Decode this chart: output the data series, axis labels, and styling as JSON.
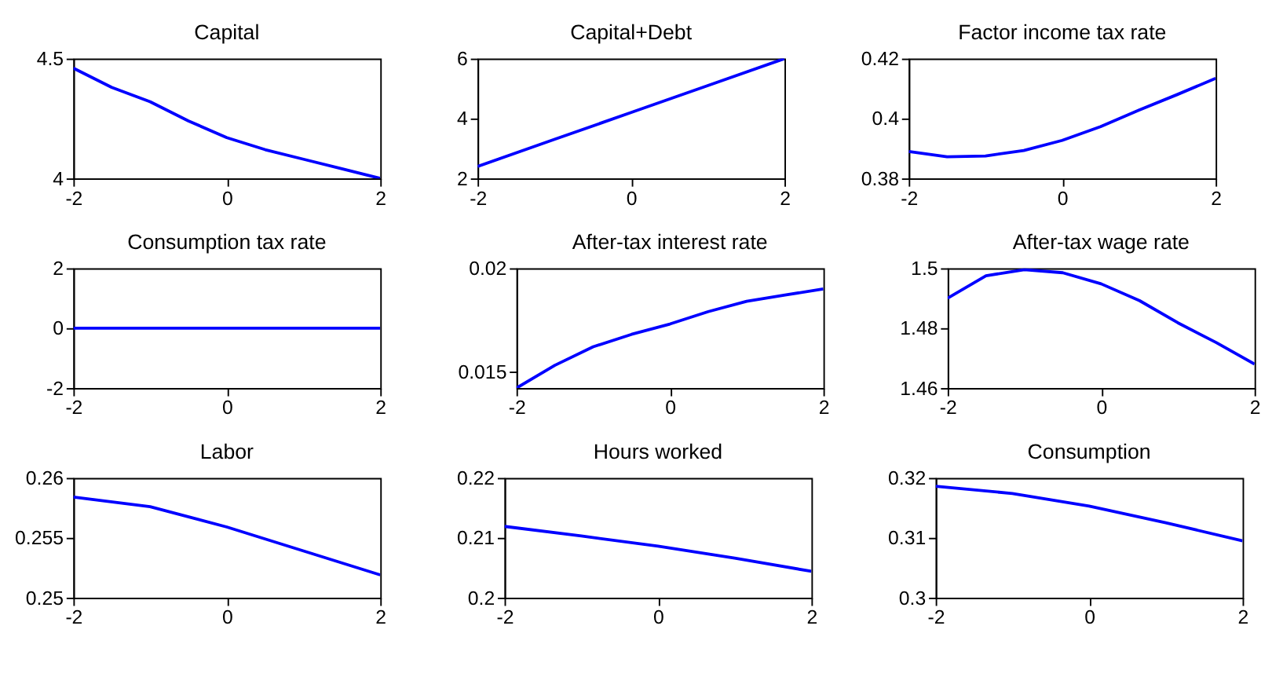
{
  "chart_data": [
    {
      "type": "line",
      "title": "Capital",
      "x": [
        -2,
        -1.5,
        -1,
        -0.5,
        0,
        0.5,
        1,
        1.5,
        2
      ],
      "xlim": [
        -2,
        2
      ],
      "xticks": [
        -2,
        0,
        2
      ],
      "ylim": [
        4,
        4.5
      ],
      "yticks": [
        4,
        4.5
      ],
      "series": [
        {
          "color": "#0000ff",
          "values": [
            4.46,
            4.38,
            4.32,
            4.24,
            4.17,
            4.12,
            4.08,
            4.04,
            4.0
          ]
        }
      ]
    },
    {
      "type": "line",
      "title": "Capital+Debt",
      "x": [
        -2,
        -1,
        0,
        1,
        2
      ],
      "xlim": [
        -2,
        2
      ],
      "xticks": [
        -2,
        0,
        2
      ],
      "ylim": [
        2,
        6
      ],
      "yticks": [
        2,
        4,
        6
      ],
      "series": [
        {
          "color": "#0000ff",
          "values": [
            2.4,
            3.3,
            4.2,
            5.1,
            6.0
          ]
        }
      ]
    },
    {
      "type": "line",
      "title": "Factor income tax rate",
      "x": [
        -2,
        -1.5,
        -1,
        -0.5,
        0,
        0.5,
        1,
        1.5,
        2
      ],
      "xlim": [
        -2,
        2
      ],
      "xticks": [
        -2,
        0,
        2
      ],
      "ylim": [
        0.38,
        0.42
      ],
      "yticks": [
        0.38,
        0.4,
        0.42
      ],
      "series": [
        {
          "color": "#0000ff",
          "values": [
            0.389,
            0.3872,
            0.3875,
            0.3893,
            0.3927,
            0.3973,
            0.4028,
            0.408,
            0.4134
          ]
        }
      ]
    },
    {
      "type": "line",
      "title": "Consumption tax rate",
      "x": [
        -2,
        2
      ],
      "xlim": [
        -2,
        2
      ],
      "xticks": [
        -2,
        0,
        2
      ],
      "ylim": [
        -2,
        2
      ],
      "yticks": [
        -2,
        0,
        2
      ],
      "series": [
        {
          "color": "#0000ff",
          "values": [
            0,
            0
          ]
        }
      ]
    },
    {
      "type": "line",
      "title": "After-tax interest rate",
      "x": [
        -2,
        -1.5,
        -1,
        -0.5,
        0,
        0.5,
        1,
        1.5,
        2
      ],
      "xlim": [
        -2,
        2
      ],
      "xticks": [
        -2,
        0,
        2
      ],
      "ylim": [
        0.0142,
        0.02
      ],
      "yticks": [
        0.015,
        0.02
      ],
      "series": [
        {
          "color": "#0000ff",
          "values": [
            0.0142,
            0.0153,
            0.0162,
            0.0168,
            0.0173,
            0.0179,
            0.0184,
            0.0187,
            0.019
          ]
        }
      ]
    },
    {
      "type": "line",
      "title": "After-tax wage rate",
      "x": [
        -2,
        -1.5,
        -1,
        -0.5,
        0,
        0.5,
        1,
        1.5,
        2
      ],
      "xlim": [
        -2,
        2
      ],
      "xticks": [
        -2,
        0,
        2
      ],
      "ylim": [
        1.46,
        1.5
      ],
      "yticks": [
        1.46,
        1.48,
        1.5
      ],
      "series": [
        {
          "color": "#0000ff",
          "values": [
            1.49,
            1.4975,
            1.4995,
            1.4985,
            1.4948,
            1.4892,
            1.4818,
            1.4752,
            1.468
          ]
        }
      ]
    },
    {
      "type": "line",
      "title": "Labor",
      "x": [
        -2,
        -1,
        0,
        1,
        2
      ],
      "xlim": [
        -2,
        2
      ],
      "xticks": [
        -2,
        0,
        2
      ],
      "ylim": [
        0.25,
        0.26
      ],
      "yticks": [
        0.25,
        0.255,
        0.26
      ],
      "series": [
        {
          "color": "#0000ff",
          "values": [
            0.2584,
            0.2576,
            0.2559,
            0.2539,
            0.2519
          ]
        }
      ]
    },
    {
      "type": "line",
      "title": "Hours worked",
      "x": [
        -2,
        -1,
        0,
        1,
        2
      ],
      "xlim": [
        -2,
        2
      ],
      "xticks": [
        -2,
        0,
        2
      ],
      "ylim": [
        0.2,
        0.22
      ],
      "yticks": [
        0.2,
        0.21,
        0.22
      ],
      "series": [
        {
          "color": "#0000ff",
          "values": [
            0.2119,
            0.2103,
            0.2086,
            0.2066,
            0.2044
          ]
        }
      ]
    },
    {
      "type": "line",
      "title": "Consumption",
      "x": [
        -2,
        -1,
        0,
        1,
        2
      ],
      "xlim": [
        -2,
        2
      ],
      "xticks": [
        -2,
        0,
        2
      ],
      "ylim": [
        0.3,
        0.32
      ],
      "yticks": [
        0.3,
        0.31,
        0.32
      ],
      "series": [
        {
          "color": "#0000ff",
          "values": [
            0.3186,
            0.3174,
            0.3153,
            0.3125,
            0.3095
          ]
        }
      ]
    }
  ]
}
